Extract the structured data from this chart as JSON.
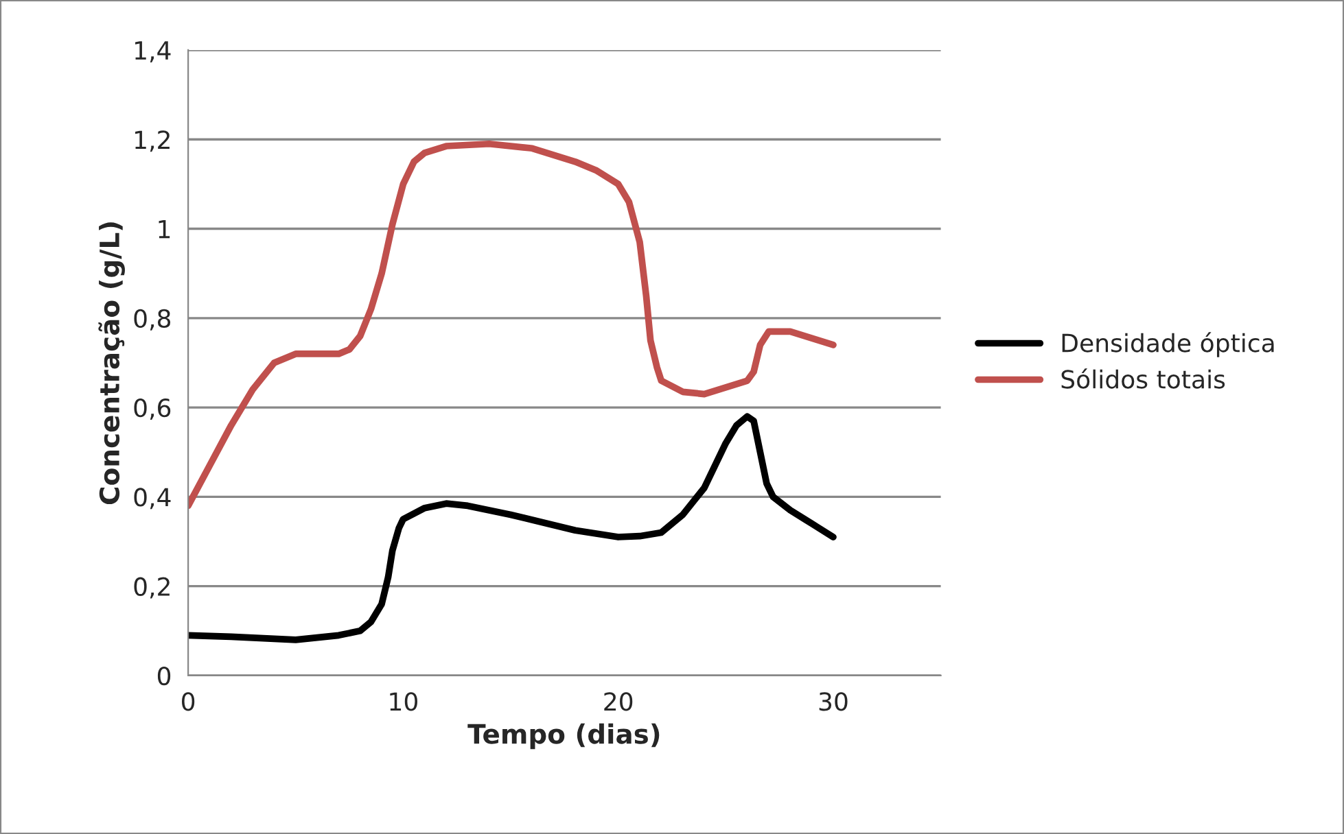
{
  "chart_data": {
    "type": "line",
    "xlabel": "Tempo (dias)",
    "ylabel": "Concentração (g/L)",
    "xlim": [
      0,
      35
    ],
    "xticks": [
      0,
      10,
      20,
      30
    ],
    "ylim": [
      0,
      1.4
    ],
    "yticks": [
      {
        "value": 0,
        "label": "0"
      },
      {
        "value": 0.2,
        "label": "0,2"
      },
      {
        "value": 0.4,
        "label": "0,4"
      },
      {
        "value": 0.6,
        "label": "0,6"
      },
      {
        "value": 0.8,
        "label": "0,8"
      },
      {
        "value": 1,
        "label": "1"
      },
      {
        "value": 1.2,
        "label": "1,2"
      },
      {
        "value": 1.4,
        "label": "1,4"
      }
    ],
    "grid": "y",
    "legend": "right",
    "marker": "none",
    "line_style": "solid",
    "series": [
      {
        "name": "Densidade óptica",
        "color": "#000000",
        "x": [
          0,
          2,
          5,
          7,
          8,
          8.5,
          9,
          9.3,
          9.5,
          9.8,
          10,
          11,
          12,
          13,
          15,
          18,
          20,
          21,
          22,
          23,
          24,
          25,
          25.5,
          26,
          26.3,
          26.6,
          26.9,
          27.2,
          28,
          29,
          30
        ],
        "values": [
          0.09,
          0.087,
          0.08,
          0.09,
          0.1,
          0.12,
          0.16,
          0.22,
          0.28,
          0.33,
          0.35,
          0.375,
          0.385,
          0.38,
          0.36,
          0.325,
          0.31,
          0.312,
          0.32,
          0.36,
          0.42,
          0.52,
          0.56,
          0.58,
          0.57,
          0.5,
          0.43,
          0.4,
          0.37,
          0.34,
          0.31
        ]
      },
      {
        "name": "Sólidos totais",
        "color": "#c0504d",
        "x": [
          0,
          1,
          2,
          3,
          4,
          5,
          6,
          7,
          7.5,
          8,
          8.5,
          9,
          9.5,
          10,
          10.5,
          11,
          12,
          14,
          16,
          18,
          19,
          20,
          20.5,
          21,
          21.3,
          21.5,
          21.8,
          22,
          23,
          24,
          25,
          26,
          26.3,
          26.6,
          27,
          28,
          29,
          30
        ],
        "values": [
          0.38,
          0.47,
          0.56,
          0.64,
          0.7,
          0.72,
          0.72,
          0.72,
          0.73,
          0.76,
          0.82,
          0.9,
          1.01,
          1.1,
          1.15,
          1.17,
          1.185,
          1.19,
          1.18,
          1.15,
          1.13,
          1.1,
          1.06,
          0.97,
          0.85,
          0.75,
          0.69,
          0.66,
          0.635,
          0.63,
          0.645,
          0.66,
          0.68,
          0.74,
          0.77,
          0.77,
          0.755,
          0.74
        ]
      }
    ]
  }
}
